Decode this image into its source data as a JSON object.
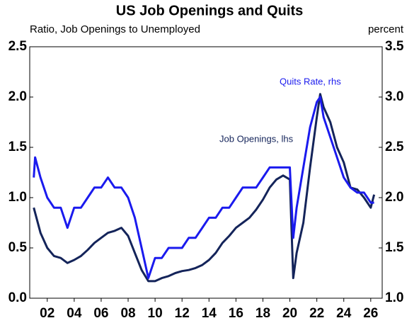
{
  "chart_data": {
    "type": "line",
    "title": "US Job Openings and Quits",
    "y_label": "Ratio, Job Openings to Unemployed",
    "y2_label": "percent",
    "xlim": [
      2000.7,
      2026.85
    ],
    "xticks": [
      {
        "value": 2002,
        "label": "02"
      },
      {
        "value": 2004,
        "label": "04"
      },
      {
        "value": 2006,
        "label": "06"
      },
      {
        "value": 2008,
        "label": "08"
      },
      {
        "value": 2010,
        "label": "10"
      },
      {
        "value": 2012,
        "label": "12"
      },
      {
        "value": 2014,
        "label": "14"
      },
      {
        "value": 2016,
        "label": "16"
      },
      {
        "value": 2018,
        "label": "18"
      },
      {
        "value": 2020,
        "label": "20"
      },
      {
        "value": 2022,
        "label": "22"
      },
      {
        "value": 2024,
        "label": "24"
      },
      {
        "value": 2026,
        "label": "26"
      }
    ],
    "ylim": [
      0,
      2.5
    ],
    "yticks": [
      {
        "value": 0,
        "label": "0.0"
      },
      0.5,
      {
        "value": 1,
        "label": "1.0"
      },
      1.5,
      {
        "value": 2,
        "label": "2.0"
      },
      2.5
    ],
    "y2lim": [
      1,
      3.5
    ],
    "y2ticks": [
      {
        "value": 1,
        "label": "1.0"
      },
      1.5,
      {
        "value": 2,
        "label": "2.0"
      },
      2.5,
      {
        "value": 3,
        "label": "3.0"
      },
      3.5
    ],
    "series": [
      {
        "name": "Job Openings, lhs",
        "color": "#14245a",
        "axis": "y",
        "x": [
          2001.0,
          2001.5,
          2002.0,
          2002.5,
          2003.0,
          2003.5,
          2004.0,
          2004.5,
          2005.0,
          2005.5,
          2006.0,
          2006.5,
          2007.0,
          2007.5,
          2008.0,
          2008.5,
          2009.0,
          2009.5,
          2010.0,
          2010.5,
          2011.0,
          2011.5,
          2012.0,
          2012.5,
          2013.0,
          2013.5,
          2014.0,
          2014.5,
          2015.0,
          2015.5,
          2016.0,
          2016.5,
          2017.0,
          2017.5,
          2018.0,
          2018.5,
          2019.0,
          2019.5,
          2020.0,
          2020.25,
          2020.5,
          2021.0,
          2021.5,
          2022.0,
          2022.25,
          2022.5,
          2023.0,
          2023.5,
          2024.0,
          2024.5,
          2025.0,
          2025.5,
          2026.0,
          2026.25
        ],
        "values": [
          0.9,
          0.65,
          0.5,
          0.42,
          0.4,
          0.35,
          0.38,
          0.42,
          0.48,
          0.55,
          0.6,
          0.65,
          0.67,
          0.7,
          0.62,
          0.45,
          0.28,
          0.17,
          0.17,
          0.2,
          0.22,
          0.25,
          0.27,
          0.28,
          0.3,
          0.33,
          0.38,
          0.45,
          0.55,
          0.62,
          0.7,
          0.75,
          0.8,
          0.88,
          0.98,
          1.1,
          1.18,
          1.22,
          1.18,
          0.2,
          0.45,
          0.75,
          1.3,
          1.8,
          2.03,
          1.9,
          1.75,
          1.5,
          1.35,
          1.1,
          1.08,
          1.0,
          0.9,
          1.03
        ]
      },
      {
        "name": "Quits Rate, rhs",
        "color": "#1a1aee",
        "axis": "y2",
        "x": [
          2001.0,
          2001.1,
          2001.5,
          2002.0,
          2002.5,
          2003.0,
          2003.5,
          2004.0,
          2004.5,
          2005.0,
          2005.5,
          2006.0,
          2006.5,
          2007.0,
          2007.5,
          2008.0,
          2008.5,
          2009.0,
          2009.5,
          2010.0,
          2010.5,
          2011.0,
          2011.5,
          2012.0,
          2012.5,
          2013.0,
          2013.5,
          2014.0,
          2014.5,
          2015.0,
          2015.5,
          2016.0,
          2016.5,
          2017.0,
          2017.5,
          2018.0,
          2018.5,
          2019.0,
          2019.5,
          2020.0,
          2020.25,
          2020.5,
          2021.0,
          2021.5,
          2022.0,
          2022.25,
          2022.5,
          2023.0,
          2023.5,
          2024.0,
          2024.5,
          2025.0,
          2025.5,
          2026.0,
          2026.25
        ],
        "values": [
          2.2,
          2.4,
          2.2,
          2.0,
          1.9,
          1.9,
          1.7,
          1.9,
          1.9,
          2.0,
          2.1,
          2.1,
          2.2,
          2.1,
          2.1,
          2.0,
          1.8,
          1.5,
          1.2,
          1.4,
          1.4,
          1.5,
          1.5,
          1.5,
          1.6,
          1.6,
          1.7,
          1.8,
          1.8,
          1.9,
          1.9,
          2.0,
          2.1,
          2.1,
          2.1,
          2.2,
          2.3,
          2.3,
          2.3,
          2.3,
          1.6,
          1.9,
          2.3,
          2.7,
          2.95,
          3.0,
          2.8,
          2.6,
          2.4,
          2.2,
          2.1,
          2.05,
          2.05,
          1.95,
          1.95
        ]
      }
    ]
  }
}
